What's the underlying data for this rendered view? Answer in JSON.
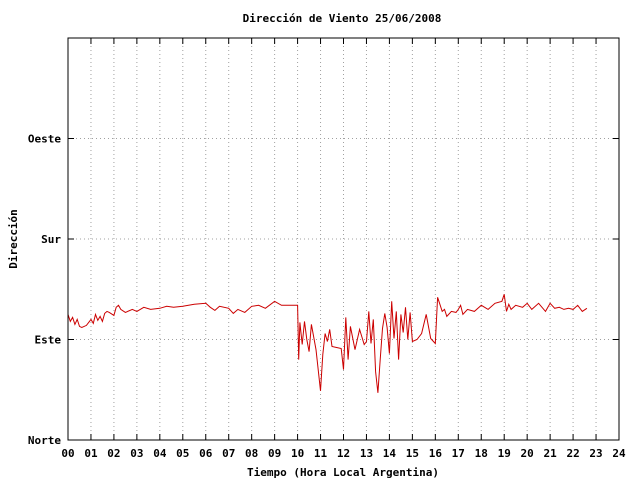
{
  "chart_data": {
    "type": "line",
    "title": "Dirección de Viento 25/06/2008",
    "xlabel": "Tiempo (Hora Local Argentina)",
    "ylabel": "Dirección",
    "xlim": [
      0,
      24
    ],
    "ylim": [
      0,
      400
    ],
    "grid": true,
    "x_ticks": [
      {
        "value": 0,
        "label": "00"
      },
      {
        "value": 1,
        "label": "01"
      },
      {
        "value": 2,
        "label": "02"
      },
      {
        "value": 3,
        "label": "03"
      },
      {
        "value": 4,
        "label": "04"
      },
      {
        "value": 5,
        "label": "05"
      },
      {
        "value": 6,
        "label": "06"
      },
      {
        "value": 7,
        "label": "07"
      },
      {
        "value": 8,
        "label": "08"
      },
      {
        "value": 9,
        "label": "09"
      },
      {
        "value": 10,
        "label": "10"
      },
      {
        "value": 11,
        "label": "11"
      },
      {
        "value": 12,
        "label": "12"
      },
      {
        "value": 13,
        "label": "13"
      },
      {
        "value": 14,
        "label": "14"
      },
      {
        "value": 15,
        "label": "15"
      },
      {
        "value": 16,
        "label": "16"
      },
      {
        "value": 17,
        "label": "17"
      },
      {
        "value": 18,
        "label": "18"
      },
      {
        "value": 19,
        "label": "19"
      },
      {
        "value": 20,
        "label": "20"
      },
      {
        "value": 21,
        "label": "21"
      },
      {
        "value": 22,
        "label": "22"
      },
      {
        "value": 23,
        "label": "23"
      },
      {
        "value": 24,
        "label": "24"
      }
    ],
    "y_ticks": [
      {
        "value": 0,
        "label": "Norte"
      },
      {
        "value": 100,
        "label": "Este"
      },
      {
        "value": 200,
        "label": "Sur"
      },
      {
        "value": 300,
        "label": "Oeste"
      }
    ],
    "series": [
      {
        "color": "#cc0000",
        "x": [
          0.0,
          0.1,
          0.2,
          0.3,
          0.4,
          0.5,
          0.6,
          0.8,
          1.0,
          1.1,
          1.2,
          1.3,
          1.4,
          1.5,
          1.6,
          1.7,
          1.8,
          2.0,
          2.1,
          2.2,
          2.3,
          2.5,
          2.8,
          3.0,
          3.3,
          3.6,
          4.0,
          4.3,
          4.6,
          5.0,
          5.5,
          6.0,
          6.2,
          6.4,
          6.6,
          7.0,
          7.2,
          7.4,
          7.7,
          8.0,
          8.3,
          8.6,
          9.0,
          9.3,
          9.6,
          10.0,
          10.05,
          10.1,
          10.2,
          10.3,
          10.4,
          10.5,
          10.6,
          10.8,
          11.0,
          11.1,
          11.2,
          11.3,
          11.4,
          11.5,
          11.7,
          11.9,
          12.0,
          12.1,
          12.2,
          12.3,
          12.5,
          12.7,
          12.9,
          13.0,
          13.1,
          13.2,
          13.3,
          13.4,
          13.5,
          13.6,
          13.7,
          13.8,
          13.9,
          14.0,
          14.1,
          14.2,
          14.3,
          14.4,
          14.5,
          14.6,
          14.7,
          14.8,
          14.9,
          15.0,
          15.2,
          15.4,
          15.6,
          15.8,
          16.0,
          16.1,
          16.2,
          16.3,
          16.4,
          16.5,
          16.7,
          16.9,
          17.0,
          17.1,
          17.2,
          17.4,
          17.7,
          18.0,
          18.3,
          18.6,
          18.9,
          19.0,
          19.1,
          19.2,
          19.3,
          19.5,
          19.8,
          20.0,
          20.2,
          20.5,
          20.8,
          21.0,
          21.2,
          21.4,
          21.6,
          21.8,
          22.0,
          22.2,
          22.4,
          22.6
        ],
        "y": [
          125,
          118,
          122,
          115,
          120,
          113,
          112,
          114,
          120,
          116,
          125,
          119,
          123,
          118,
          126,
          128,
          127,
          124,
          132,
          134,
          130,
          127,
          130,
          128,
          132,
          130,
          131,
          133,
          132,
          133,
          135,
          136,
          132,
          129,
          133,
          131,
          126,
          130,
          127,
          133,
          134,
          131,
          138,
          134,
          134,
          134,
          80,
          117,
          95,
          118,
          100,
          88,
          115,
          90,
          49,
          85,
          106,
          98,
          110,
          93,
          92,
          91,
          70,
          122,
          80,
          113,
          90,
          110,
          95,
          98,
          128,
          96,
          120,
          68,
          47,
          80,
          111,
          126,
          112,
          86,
          138,
          101,
          128,
          80,
          125,
          107,
          132,
          100,
          127,
          98,
          100,
          106,
          125,
          101,
          96,
          142,
          135,
          128,
          130,
          123,
          128,
          127,
          130,
          134,
          125,
          130,
          128,
          134,
          130,
          136,
          138,
          145,
          128,
          135,
          130,
          134,
          132,
          136,
          130,
          136,
          128,
          136,
          131,
          132,
          130,
          131,
          130,
          134,
          128,
          131
        ]
      }
    ]
  }
}
